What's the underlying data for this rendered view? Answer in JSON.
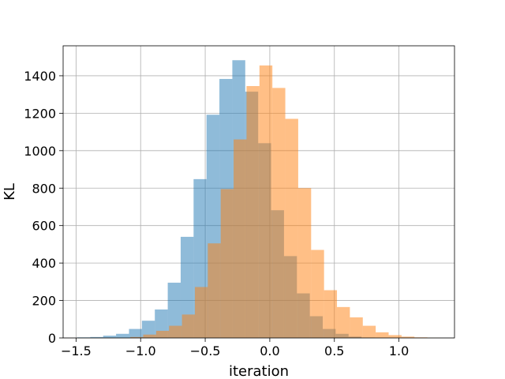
{
  "chart_data": {
    "type": "histogram",
    "xlabel": "iteration",
    "ylabel": "KL",
    "xlim": [
      -1.6,
      1.43
    ],
    "ylim": [
      0,
      1560
    ],
    "grid": true,
    "xticks": [
      -1.5,
      -1.0,
      -0.5,
      0.0,
      0.5,
      1.0
    ],
    "xtick_labels": [
      "−1.5",
      "−1.0",
      "−0.5",
      "0.0",
      "0.5",
      "1.0"
    ],
    "yticks": [
      0,
      200,
      400,
      600,
      800,
      1000,
      1200,
      1400
    ],
    "ytick_labels": [
      "0",
      "200",
      "400",
      "600",
      "800",
      "1000",
      "1200",
      "1400"
    ],
    "series": [
      {
        "color": "#1f77b4",
        "opacity": 0.5,
        "bin_edges": [
          -1.49,
          -1.39,
          -1.29,
          -1.19,
          -1.09,
          -0.99,
          -0.89,
          -0.79,
          -0.69,
          -0.59,
          -0.49,
          -0.39,
          -0.29,
          -0.19,
          -0.09,
          0.01,
          0.11,
          0.21,
          0.31,
          0.41,
          0.51,
          0.61,
          0.71,
          0.81
        ],
        "values": [
          3,
          5,
          12,
          22,
          48,
          92,
          152,
          295,
          540,
          848,
          1192,
          1383,
          1483,
          1315,
          1040,
          682,
          437,
          238,
          116,
          48,
          22,
          7,
          2
        ]
      },
      {
        "color": "#ff7f0e",
        "opacity": 0.5,
        "bin_edges": [
          -1.08,
          -0.98,
          -0.88,
          -0.78,
          -0.68,
          -0.58,
          -0.48,
          -0.38,
          -0.28,
          -0.18,
          -0.08,
          0.02,
          0.12,
          0.22,
          0.32,
          0.42,
          0.52,
          0.62,
          0.72,
          0.82,
          0.92,
          1.02,
          1.12,
          1.22,
          1.32
        ],
        "values": [
          5,
          18,
          38,
          65,
          125,
          272,
          505,
          795,
          1060,
          1345,
          1455,
          1335,
          1170,
          800,
          470,
          255,
          165,
          110,
          65,
          30,
          15,
          7,
          3,
          1
        ]
      }
    ]
  }
}
